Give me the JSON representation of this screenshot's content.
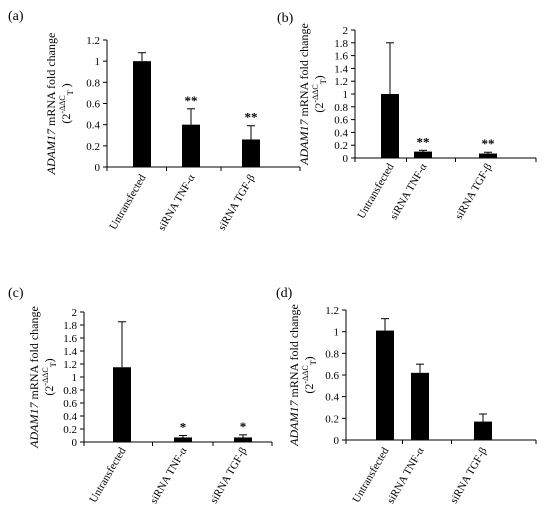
{
  "chart_data": [
    {
      "type": "bar",
      "panel_label": "(a)",
      "ylabel_gene": "ADAM17",
      "ylabel_text": " mRNA fold change",
      "ylabel_formula": "(2",
      "ylabel_formula_sup": "-ΔΔC",
      "ylabel_formula_sub": "T",
      "ylabel_formula_close": " )",
      "categories": [
        "Untransfected",
        "siRNA TNF-α",
        "siRNA TGF-β"
      ],
      "values": [
        1.0,
        0.4,
        0.26
      ],
      "errors": [
        0.08,
        0.15,
        0.13
      ],
      "significance": [
        "",
        "**",
        "**"
      ],
      "ylim": [
        0,
        1.2
      ],
      "yticks": [
        "0",
        "0.2",
        "0.4",
        "0.6",
        "0.8",
        "1",
        "1.2"
      ],
      "grid": false,
      "color": "#000000"
    },
    {
      "type": "bar",
      "panel_label": "(b)",
      "ylabel_gene": "ADAM17",
      "ylabel_text": " mRNA fold change",
      "ylabel_formula": "(2",
      "ylabel_formula_sup": "-ΔΔC",
      "ylabel_formula_sub": "T",
      "ylabel_formula_close": ")",
      "categories": [
        "Untransfected",
        "siRNA TNF-α",
        "siRNA TGF-β"
      ],
      "values": [
        1.0,
        0.1,
        0.07
      ],
      "errors": [
        0.8,
        0.02,
        0.02
      ],
      "significance": [
        "",
        "**",
        "**"
      ],
      "ylim": [
        0,
        2
      ],
      "yticks": [
        "0",
        "0.2",
        "0.4",
        "0.6",
        "0.8",
        "1",
        "1.2",
        "1.4",
        "1.6",
        "1.8",
        "2"
      ],
      "grid": false,
      "color": "#000000"
    },
    {
      "type": "bar",
      "panel_label": "(c)",
      "ylabel_gene": "ADAM17",
      "ylabel_text": " mRNA fold change",
      "ylabel_formula": "(2",
      "ylabel_formula_sup": "-ΔΔC",
      "ylabel_formula_sub": "T",
      "ylabel_formula_close": ")",
      "categories": [
        "Untransfected",
        "siRNA TNF-α",
        "siRNA TGF-β"
      ],
      "values": [
        1.15,
        0.07,
        0.07
      ],
      "errors": [
        0.7,
        0.03,
        0.04
      ],
      "significance": [
        "",
        "*",
        "*"
      ],
      "ylim": [
        0,
        2
      ],
      "yticks": [
        "0",
        "0.2",
        "0.4",
        "0.6",
        "0.8",
        "1",
        "1.2",
        "1.4",
        "1.6",
        "1.8",
        "2"
      ],
      "grid": false,
      "color": "#000000"
    },
    {
      "type": "bar",
      "panel_label": "(d)",
      "ylabel_gene": "ADAM17",
      "ylabel_text": " mRNA fold change",
      "ylabel_formula": "(2",
      "ylabel_formula_sup": "-ΔΔC",
      "ylabel_formula_sub": "T",
      "ylabel_formula_close": ")",
      "categories": [
        "Untransfected",
        "siRNA TNF-α",
        "siRNA TGF-β"
      ],
      "values": [
        1.01,
        0.62,
        0.17
      ],
      "errors": [
        0.11,
        0.08,
        0.07
      ],
      "significance": [
        "",
        "",
        ""
      ],
      "ylim": [
        0,
        1.2
      ],
      "yticks": [
        "0",
        "0.2",
        "0.4",
        "0.6",
        "0.8",
        "1",
        "1.2"
      ],
      "grid": false,
      "color": "#000000"
    }
  ]
}
